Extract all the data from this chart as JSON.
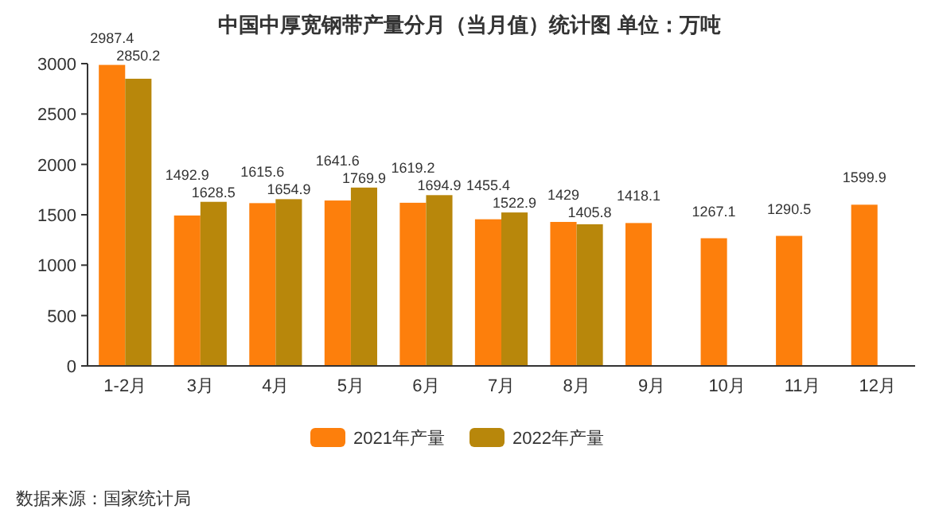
{
  "chart_data": {
    "type": "bar",
    "title": "中国中厚宽钢带产量分月（当月值）统计图 单位：万吨",
    "categories": [
      "1-2月",
      "3月",
      "4月",
      "5月",
      "6月",
      "7月",
      "8月",
      "9月",
      "10月",
      "11月",
      "12月"
    ],
    "series": [
      {
        "name": "2021年产量",
        "color": "#fd7f0c",
        "values": [
          2987.4,
          1492.9,
          1615.6,
          1641.6,
          1619.2,
          1455.4,
          1429,
          1418.1,
          1267.1,
          1290.5,
          1599.9
        ]
      },
      {
        "name": "2022年产量",
        "color": "#b8870b",
        "values": [
          2850.2,
          1628.5,
          1654.9,
          1769.9,
          1694.9,
          1522.9,
          1405.8,
          null,
          null,
          null,
          null
        ]
      }
    ],
    "ylim": [
      0,
      3000
    ],
    "yticks": [
      0,
      500,
      1000,
      1500,
      2000,
      2500,
      3000
    ],
    "grid": false,
    "legend": "bottom",
    "data_labels": true,
    "annotations": [
      "数据来源：国家统计局"
    ]
  }
}
